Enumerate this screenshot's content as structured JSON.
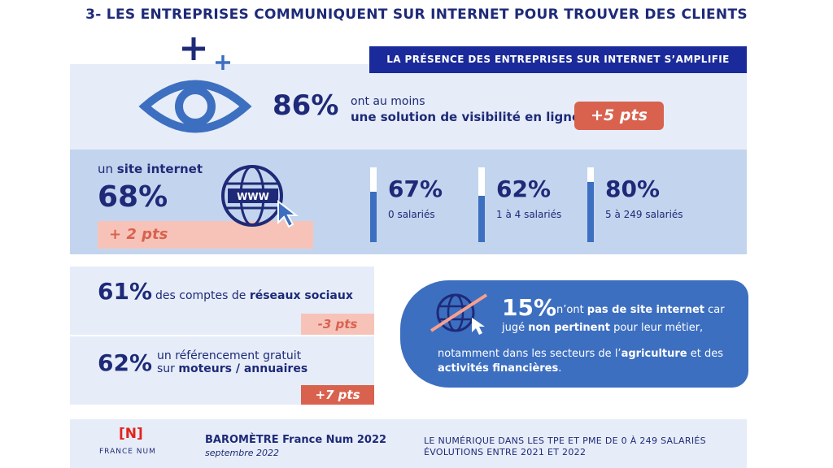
{
  "title": "3- LES ENTREPRISES COMMUNIQUENT SUR INTERNET POUR TROUVER DES CLIENTS",
  "banner": "LA PRÉSENCE DES ENTREPRISES SUR INTERNET S’AMPLIFIE",
  "visibility": {
    "percent": "86%",
    "line1": "ont au moins",
    "line2": "une solution de visibilité en ligne",
    "delta": "+5 pts"
  },
  "website": {
    "label_prefix": "un ",
    "label_bold": "site internet",
    "percent": "68%",
    "delta": "+ 2 pts",
    "www_text": "WWW",
    "breakdown": [
      {
        "percent": "67%",
        "value": 0.67,
        "label": "0 salariés"
      },
      {
        "percent": "62%",
        "value": 0.62,
        "label": "1 à 4 salariés"
      },
      {
        "percent": "80%",
        "value": 0.8,
        "label": "5 à 249 salariés"
      }
    ]
  },
  "social": {
    "percent": "61%",
    "text_prefix": "des comptes de ",
    "text_bold": "réseaux sociaux",
    "delta": "-3 pts"
  },
  "referencing": {
    "percent": "62%",
    "line1": "un référencement gratuit",
    "line2_prefix": "sur ",
    "line2_bold": "moteurs / annuaires",
    "delta": "+7 pts"
  },
  "no_site": {
    "percent": "15%",
    "t1": "n’ont ",
    "t1_bold": "pas de site internet",
    "t1_end": " car",
    "t2": "jugé ",
    "t2_bold": "non pertinent",
    "t2_end": " pour leur métier,",
    "t3": "notamment dans les secteurs de l’",
    "t3_bold": "agriculture",
    "t3_end": " et des",
    "t4_bold": "activités financières",
    "t4_end": "."
  },
  "footer": {
    "logo": "[N]",
    "logo_caption": "FRANCE NUM",
    "baro_title": "BAROMÈTRE France Num 2022",
    "baro_date": "septembre 2022",
    "right_line1": "LE NUMÉRIQUE DANS LES TPE ET PME DE 0 À 249 SALARIÉS",
    "right_line2": "ÉVOLUTIONS ENTRE 2021 ET 2022"
  },
  "colors": {
    "navy": "#1e2a78",
    "accent_blue": "#3d6fc0",
    "coral": "#d9624f",
    "light_coral": "#f7c3b8",
    "light_blue": "#e6edf8",
    "mid_blue": "#c3d5ee",
    "logo_red": "#e2231a"
  },
  "icons": [
    "plus-icon",
    "eye-icon",
    "globe-www-icon",
    "cursor-icon",
    "globe-crossed-icon"
  ]
}
